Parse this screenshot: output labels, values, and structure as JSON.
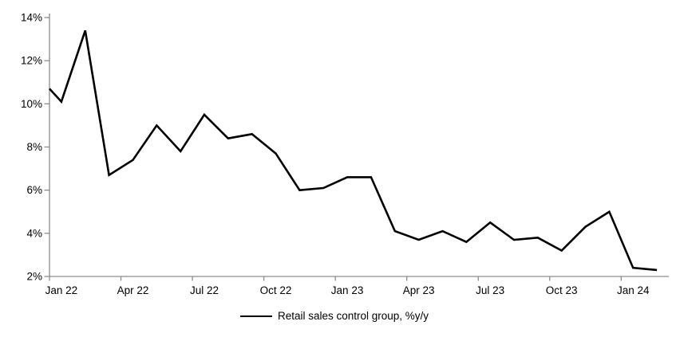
{
  "chart_data": {
    "type": "line",
    "title": "",
    "legend": "Retail sales control group, %y/y",
    "legend_position": "bottom",
    "grid": false,
    "background": "#ffffff",
    "axis_color": "#8c8c8c",
    "line_color": "#000000",
    "line_width": 2.6,
    "ylim": [
      2,
      14
    ],
    "y_ticks": [
      2,
      4,
      6,
      8,
      10,
      12,
      14
    ],
    "y_tick_labels": [
      "2%",
      "4%",
      "6%",
      "8%",
      "10%",
      "12%",
      "14%"
    ],
    "x_tick_labels": [
      "Jan 22",
      "Apr 22",
      "Jul 22",
      "Oct 22",
      "Jan 23",
      "Apr 23",
      "Jul 23",
      "Oct 23",
      "Jan 24"
    ],
    "x_label_every": 3,
    "categories": [
      "Jan 22",
      "Feb 22",
      "Mar 22",
      "Apr 22",
      "May 22",
      "Jun 22",
      "Jul 22",
      "Aug 22",
      "Sep 22",
      "Oct 22",
      "Nov 22",
      "Dec 22",
      "Jan 23",
      "Feb 23",
      "Mar 23",
      "Apr 23",
      "May 23",
      "Jun 23",
      "Jul 23",
      "Aug 23",
      "Sep 23",
      "Oct 23",
      "Nov 23",
      "Dec 23",
      "Jan 24",
      "Feb 24"
    ],
    "edge_start_value": 10.7,
    "series": [
      {
        "name": "Retail sales control group, %y/y",
        "color": "#000000",
        "values": [
          10.1,
          13.4,
          6.7,
          7.4,
          9.0,
          7.8,
          9.5,
          8.4,
          8.6,
          7.7,
          6.0,
          6.1,
          6.6,
          6.6,
          4.1,
          3.7,
          4.1,
          3.6,
          4.5,
          3.7,
          3.8,
          3.2,
          4.3,
          5.0,
          2.4,
          2.3
        ]
      }
    ]
  }
}
